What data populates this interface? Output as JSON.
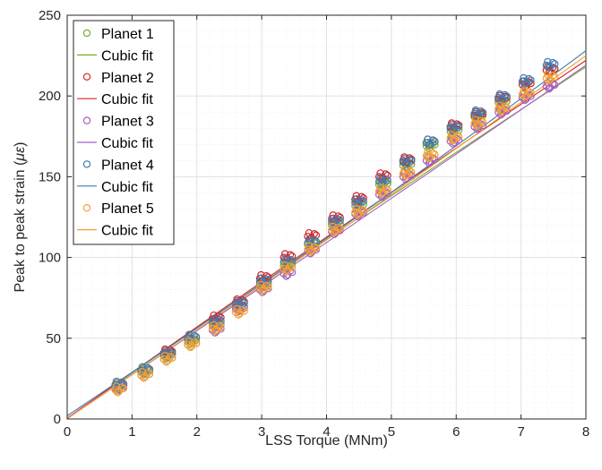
{
  "chart_data": {
    "type": "scatter",
    "xlabel": "LSS Torque (MNm)",
    "ylabel": "Peak to peak strain (με)",
    "ylabel_prefix": "Peak to peak strain (",
    "ylabel_symbol": "με",
    "ylabel_suffix": ")",
    "xlim": [
      0,
      8
    ],
    "ylim": [
      0,
      250
    ],
    "xticks": [
      0,
      1,
      2,
      3,
      4,
      5,
      6,
      7,
      8
    ],
    "yticks": [
      0,
      50,
      100,
      150,
      200,
      250
    ],
    "xtick_labels": [
      "0",
      "1",
      "2",
      "3",
      "4",
      "5",
      "6",
      "7",
      "8"
    ],
    "ytick_labels": [
      "0",
      "50",
      "100",
      "150",
      "200",
      "250"
    ],
    "grid": true,
    "minor_grid": true,
    "legend_position": "top-left",
    "x": [
      0.8,
      1.2,
      1.55,
      1.92,
      2.3,
      2.66,
      3.03,
      3.4,
      3.77,
      4.14,
      4.5,
      4.87,
      5.24,
      5.6,
      5.97,
      6.34,
      6.71,
      7.08,
      7.45
    ],
    "series": [
      {
        "name": "Planet 1",
        "fit_name": "Cubic fit",
        "color": "#77ac30",
        "values": [
          20,
          29,
          39,
          48,
          58,
          69,
          83,
          95,
          108,
          120,
          132,
          145,
          157,
          169,
          178,
          187,
          196,
          207,
          216
        ],
        "fit": [
          0.5,
          28.5,
          218
        ]
      },
      {
        "name": "Planet 2",
        "fit_name": "Cubic fit",
        "color": "#d62728",
        "values": [
          21,
          30,
          41,
          50,
          62,
          72,
          87,
          100,
          113,
          124,
          136,
          150,
          160,
          171,
          181,
          188,
          198,
          207,
          216
        ],
        "fit": [
          0.5,
          28.8,
          222
        ]
      },
      {
        "name": "Planet 3",
        "fit_name": "Cubic fit",
        "color": "#a45ec2",
        "values": [
          19,
          27,
          37,
          46,
          55,
          68,
          80,
          90,
          104,
          116,
          127,
          139,
          150,
          160,
          172,
          181,
          190,
          199,
          206
        ],
        "fit": [
          0.2,
          27.4,
          219
        ]
      },
      {
        "name": "Planet 4",
        "fit_name": "Cubic fit",
        "color": "#3d7cb5",
        "values": [
          21,
          30,
          40,
          50,
          60,
          71,
          85,
          97,
          109,
          122,
          134,
          147,
          159,
          171,
          180,
          189,
          199,
          209,
          219
        ],
        "fit": [
          2.0,
          28.9,
          228
        ]
      },
      {
        "name": "Planet 5",
        "fit_name": "Cubic fit",
        "color": "#f5a02c",
        "values": [
          18,
          27,
          37,
          46,
          56,
          66,
          81,
          93,
          105,
          117,
          128,
          141,
          152,
          163,
          174,
          183,
          192,
          201,
          211
        ],
        "fit": [
          0.3,
          27.6,
          225
        ]
      }
    ]
  }
}
